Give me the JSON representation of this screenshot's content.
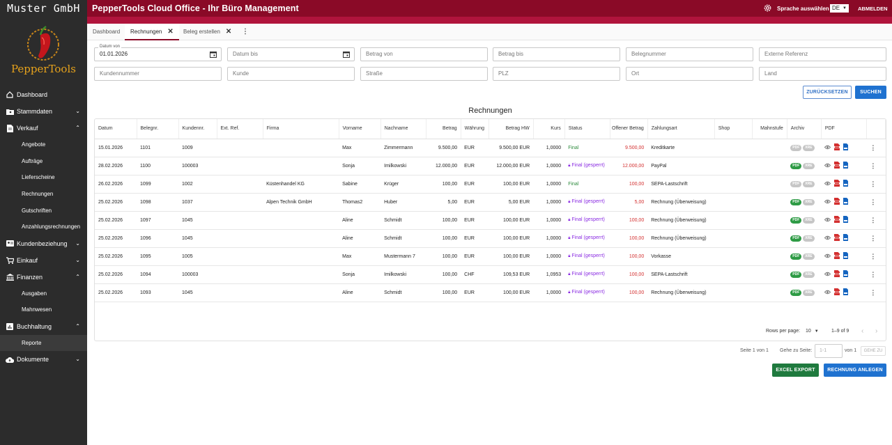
{
  "sidebar": {
    "company": "Muster GmbH",
    "logo_text": "PepperTools",
    "items": [
      {
        "label": "Dashboard"
      },
      {
        "label": "Stammdaten"
      },
      {
        "label": "Verkauf"
      },
      {
        "label": "Angebote"
      },
      {
        "label": "Aufträge"
      },
      {
        "label": "Lieferscheine"
      },
      {
        "label": "Rechnungen"
      },
      {
        "label": "Gutschriften"
      },
      {
        "label": "Anzahlungsrechnungen"
      },
      {
        "label": "Kundenbeziehung"
      },
      {
        "label": "Einkauf"
      },
      {
        "label": "Finanzen"
      },
      {
        "label": "Ausgaben"
      },
      {
        "label": "Mahnwesen"
      },
      {
        "label": "Buchhaltung"
      },
      {
        "label": "Reporte"
      },
      {
        "label": "Dokumente"
      }
    ]
  },
  "header": {
    "title": "PepperTools Cloud Office - Ihr Büro Management",
    "language_label": "Sprache auswählen",
    "language_value": "DE",
    "logout": "ABMELDEN",
    "accent": "#8a0a27"
  },
  "tabs": [
    {
      "label": "Dashboard"
    },
    {
      "label": "Rechnungen"
    },
    {
      "label": "Beleg erstellen"
    }
  ],
  "filters": {
    "date_from_label": "Datum von",
    "date_from_value": "01.01.2026",
    "date_to": "Datum bis",
    "amount_from": "Betrag von",
    "amount_to": "Betrag bis",
    "doc_number": "Belegnummer",
    "external_ref": "Externe Referenz",
    "customer_number": "Kundennummer",
    "customer": "Kunde",
    "street": "Straße",
    "zip": "PLZ",
    "city": "Ort",
    "country": "Land",
    "reset": "ZURÜCKSETZEN",
    "search": "SUCHEN"
  },
  "table": {
    "title": "Rechnungen",
    "columns": [
      "Datum",
      "Belegnr.",
      "Kundennr.",
      "Ext. Ref.",
      "Firma",
      "Vorname",
      "Nachname",
      "Betrag",
      "Währung",
      "Betrag HW",
      "Kurs",
      "Status",
      "Offener Betrag",
      "Zahlungsart",
      "Shop",
      "Mahnstufe",
      "Archiv",
      "PDF"
    ],
    "rows": [
      {
        "datum": "15.01.2026",
        "belegnr": "1101",
        "kundennr": "1009",
        "extref": "",
        "firma": "",
        "vorname": "Max",
        "nachname": "Zimmermann",
        "betrag": "9.500,00",
        "waehrung": "EUR",
        "betraghw": "9.500,00 EUR",
        "kurs": "1,0000",
        "status": "Final",
        "locked": false,
        "offen": "9.500,00",
        "zahlungsart": "Kreditkarte",
        "pdf_active": false
      },
      {
        "datum": "28.02.2026",
        "belegnr": "1100",
        "kundennr": "100003",
        "extref": "",
        "firma": "",
        "vorname": "Sonja",
        "nachname": "Imilkowski",
        "betrag": "12.000,00",
        "waehrung": "EUR",
        "betraghw": "12.000,00 EUR",
        "kurs": "1,0000",
        "status": "Final (gesperrt)",
        "locked": true,
        "offen": "12.000,00",
        "zahlungsart": "PayPal",
        "pdf_active": true
      },
      {
        "datum": "26.02.2026",
        "belegnr": "1099",
        "kundennr": "1002",
        "extref": "",
        "firma": "Küstenhandel KG",
        "vorname": "Sabine",
        "nachname": "Krüger",
        "betrag": "100,00",
        "waehrung": "EUR",
        "betraghw": "100,00 EUR",
        "kurs": "1,0000",
        "status": "Final",
        "locked": false,
        "offen": "100,00",
        "zahlungsart": "SEPA-Lastschrift",
        "pdf_active": false
      },
      {
        "datum": "25.02.2026",
        "belegnr": "1098",
        "kundennr": "1037",
        "extref": "",
        "firma": "Alpen Technik GmbH",
        "vorname": "Thomas2",
        "nachname": "Huber",
        "betrag": "5,00",
        "waehrung": "EUR",
        "betraghw": "5,00 EUR",
        "kurs": "1,0000",
        "status": "Final (gesperrt)",
        "locked": true,
        "offen": "5,00",
        "zahlungsart": "Rechnung (Überweisung)",
        "pdf_active": true
      },
      {
        "datum": "25.02.2026",
        "belegnr": "1097",
        "kundennr": "1045",
        "extref": "",
        "firma": "",
        "vorname": "Aline",
        "nachname": "Schmidt",
        "betrag": "100,00",
        "waehrung": "EUR",
        "betraghw": "100,00 EUR",
        "kurs": "1,0000",
        "status": "Final (gesperrt)",
        "locked": true,
        "offen": "100,00",
        "zahlungsart": "Rechnung (Überweisung)",
        "pdf_active": true
      },
      {
        "datum": "25.02.2026",
        "belegnr": "1096",
        "kundennr": "1045",
        "extref": "",
        "firma": "",
        "vorname": "Aline",
        "nachname": "Schmidt",
        "betrag": "100,00",
        "waehrung": "EUR",
        "betraghw": "100,00 EUR",
        "kurs": "1,0000",
        "status": "Final (gesperrt)",
        "locked": true,
        "offen": "100,00",
        "zahlungsart": "Rechnung (Überweisung)",
        "pdf_active": true
      },
      {
        "datum": "25.02.2026",
        "belegnr": "1095",
        "kundennr": "1005",
        "extref": "",
        "firma": "",
        "vorname": "Max",
        "nachname": "Mustermann 7",
        "betrag": "100,00",
        "waehrung": "EUR",
        "betraghw": "100,00 EUR",
        "kurs": "1,0000",
        "status": "Final (gesperrt)",
        "locked": true,
        "offen": "100,00",
        "zahlungsart": "Vorkasse",
        "pdf_active": true
      },
      {
        "datum": "25.02.2026",
        "belegnr": "1094",
        "kundennr": "100003",
        "extref": "",
        "firma": "",
        "vorname": "Sonja",
        "nachname": "Imilkowski",
        "betrag": "100,00",
        "waehrung": "CHF",
        "betraghw": "109,53 EUR",
        "kurs": "1,0953",
        "status": "Final (gesperrt)",
        "locked": true,
        "offen": "100,00",
        "zahlungsart": "SEPA-Lastschrift",
        "pdf_active": true
      },
      {
        "datum": "25.02.2026",
        "belegnr": "1093",
        "kundennr": "1045",
        "extref": "",
        "firma": "",
        "vorname": "Aline",
        "nachname": "Schmidt",
        "betrag": "100,00",
        "waehrung": "EUR",
        "betraghw": "100,00 EUR",
        "kurs": "1,0000",
        "status": "Final (gesperrt)",
        "locked": true,
        "offen": "100,00",
        "zahlungsart": "Rechnung (Überweisung)",
        "pdf_active": true
      }
    ],
    "badge_pdf": "PDF",
    "badge_xre": "XRE"
  },
  "pagination": {
    "rows_per_page_label": "Rows per page:",
    "rows_per_page_value": "10",
    "range": "1–9 of 9",
    "page_info": "Seite 1 von 1",
    "goto_label": "Gehe zu Seite:",
    "goto_placeholder": "1-1",
    "of_label": "von 1",
    "goto_button": "GEHE ZU"
  },
  "actions": {
    "excel_export": "EXCEL EXPORT",
    "create_invoice": "RECHNUNG ANLEGEN"
  }
}
